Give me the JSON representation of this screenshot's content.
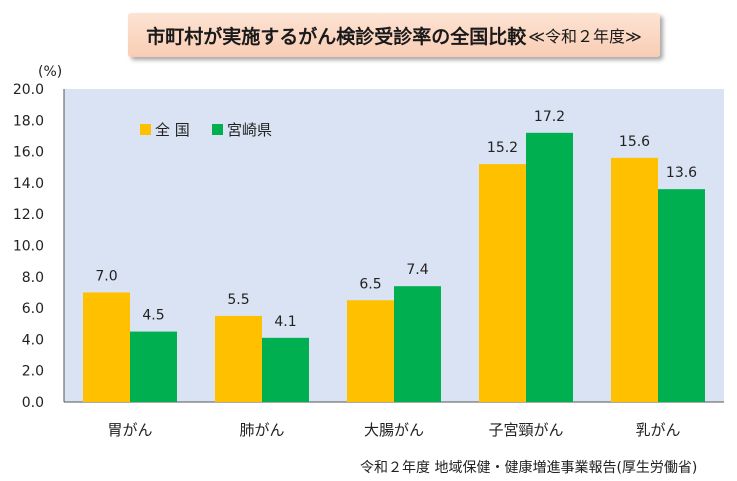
{
  "title": {
    "main": "市町村が実施するがん検診受診率の全国比較",
    "sub": "≪令和２年度≫"
  },
  "source": "令和２年度 地域保健・健康増進事業報告(厚生労働省)",
  "colors": {
    "national": "#ffc000",
    "miyazaki": "#00b050",
    "plot_bg": "#dae3f3"
  },
  "chart_data": {
    "type": "bar",
    "ylabel": "(%)",
    "ylim": [
      0,
      20
    ],
    "ystep": 2,
    "yticks": [
      "0.0",
      "2.0",
      "4.0",
      "6.0",
      "8.0",
      "10.0",
      "12.0",
      "14.0",
      "16.0",
      "18.0",
      "20.0"
    ],
    "categories": [
      "胃がん",
      "肺がん",
      "大腸がん",
      "子宮頸がん",
      "乳がん"
    ],
    "series": [
      {
        "name": "全 国",
        "values": [
          7.0,
          5.5,
          6.5,
          15.2,
          15.6
        ],
        "labels": [
          "7.0",
          "5.5",
          "6.5",
          "15.2",
          "15.6"
        ]
      },
      {
        "name": "宮崎県",
        "values": [
          4.5,
          4.1,
          7.4,
          17.2,
          13.6
        ],
        "labels": [
          "4.5",
          "4.1",
          "7.4",
          "17.2",
          "13.6"
        ]
      }
    ],
    "legend": "top-left",
    "grid": false
  }
}
